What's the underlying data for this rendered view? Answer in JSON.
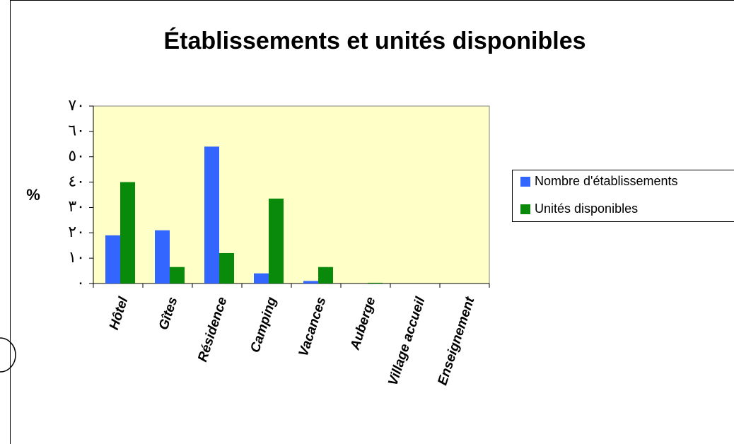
{
  "chart_data": {
    "type": "bar",
    "title": "Établissements et unités disponibles",
    "y_label": "%",
    "categories": [
      "Hôtel",
      "Gîtes",
      "Résidence",
      "Camping",
      "Vacances",
      "Auberge",
      "Village accueil",
      "Enseignement"
    ],
    "series": [
      {
        "name": "Nombre d'établissements",
        "color": "#3366ff",
        "values": [
          19,
          21,
          54,
          4,
          1,
          0,
          0,
          0
        ]
      },
      {
        "name": "Unités disponibles",
        "color": "#0a8a0a",
        "values": [
          40,
          6.5,
          12,
          33.5,
          6.5,
          0.3,
          0,
          0
        ]
      }
    ],
    "ylim": [
      0,
      70
    ],
    "yticks": [
      {
        "value": 0,
        "label": "٠"
      },
      {
        "value": 10,
        "label": "١٠"
      },
      {
        "value": 20,
        "label": "٢٠"
      },
      {
        "value": 30,
        "label": "٣٠"
      },
      {
        "value": 40,
        "label": "٤٠"
      },
      {
        "value": 50,
        "label": "٥٠"
      },
      {
        "value": 60,
        "label": "٦٠"
      },
      {
        "value": 70,
        "label": "٧٠"
      }
    ],
    "plot_background": "#ffffc8",
    "legend": "right"
  }
}
